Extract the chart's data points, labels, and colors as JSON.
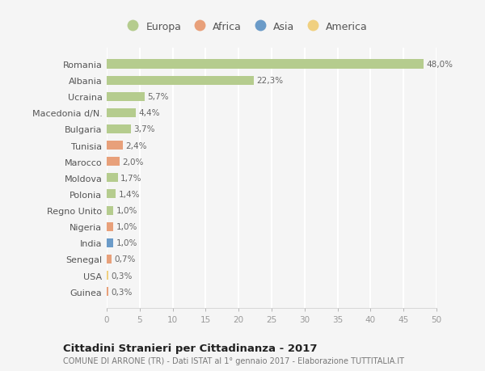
{
  "countries": [
    "Romania",
    "Albania",
    "Ucraina",
    "Macedonia d/N.",
    "Bulgaria",
    "Tunisia",
    "Marocco",
    "Moldova",
    "Polonia",
    "Regno Unito",
    "Nigeria",
    "India",
    "Senegal",
    "USA",
    "Guinea"
  ],
  "values": [
    48.0,
    22.3,
    5.7,
    4.4,
    3.7,
    2.4,
    2.0,
    1.7,
    1.4,
    1.0,
    1.0,
    1.0,
    0.7,
    0.3,
    0.3
  ],
  "labels": [
    "48,0%",
    "22,3%",
    "5,7%",
    "4,4%",
    "3,7%",
    "2,4%",
    "2,0%",
    "1,7%",
    "1,4%",
    "1,0%",
    "1,0%",
    "1,0%",
    "0,7%",
    "0,3%",
    "0,3%"
  ],
  "continents": [
    "Europa",
    "Europa",
    "Europa",
    "Europa",
    "Europa",
    "Africa",
    "Africa",
    "Europa",
    "Europa",
    "Europa",
    "Africa",
    "Asia",
    "Africa",
    "America",
    "Africa"
  ],
  "colors": {
    "Europa": "#b5cc8e",
    "Africa": "#e8a07a",
    "Asia": "#6b9bc8",
    "America": "#f0d080"
  },
  "bg_color": "#f5f5f5",
  "grid_color": "#ffffff",
  "title": "Cittadini Stranieri per Cittadinanza - 2017",
  "subtitle": "COMUNE DI ARRONE (TR) - Dati ISTAT al 1° gennaio 2017 - Elaborazione TUTTITALIA.IT",
  "xlim": [
    0,
    50
  ],
  "xticks": [
    0,
    5,
    10,
    15,
    20,
    25,
    30,
    35,
    40,
    45,
    50
  ],
  "legend_order": [
    "Europa",
    "Africa",
    "Asia",
    "America"
  ]
}
